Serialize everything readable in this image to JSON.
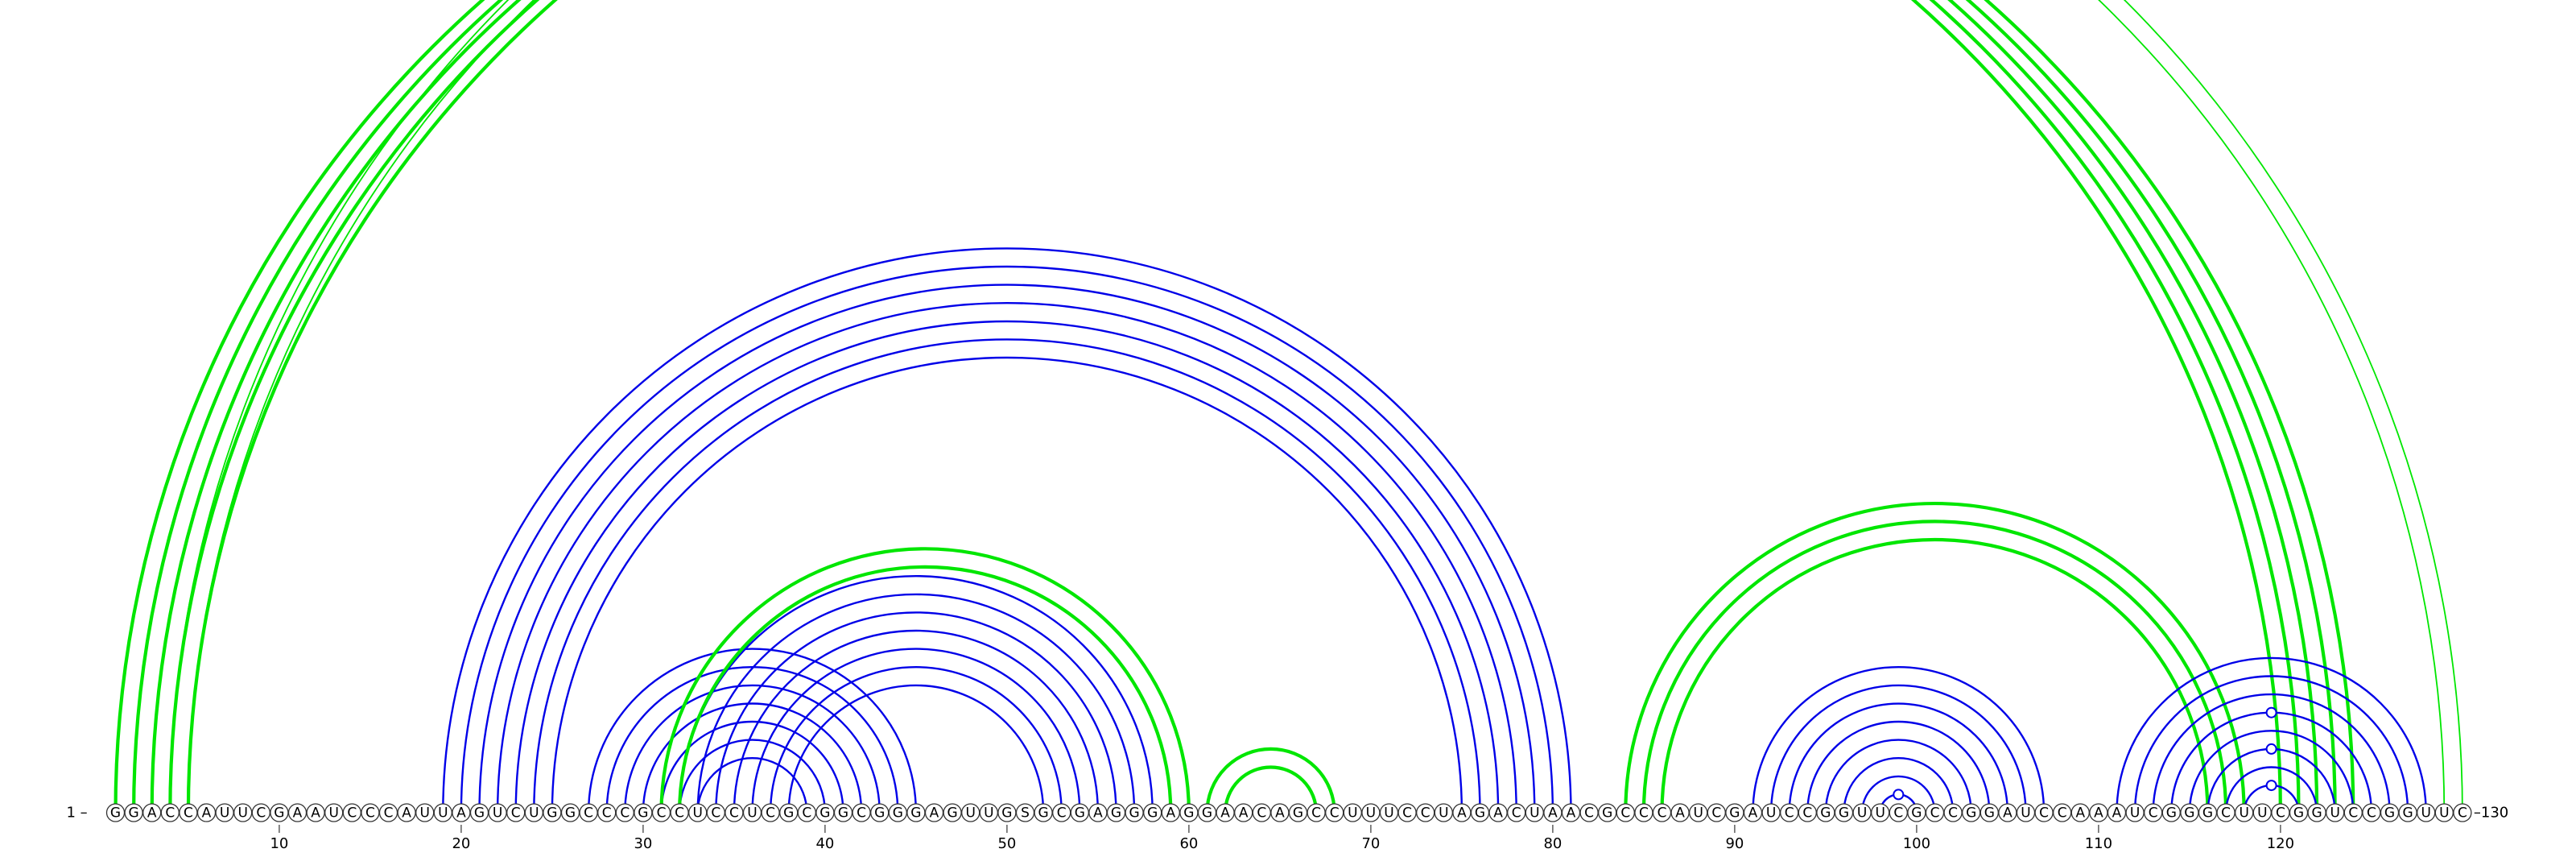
{
  "sequence": "GGACCAUUCGAAUCCCAUUAGUCUGGCCCGCCUCCUCGCGGCGGGAGUUGSGCGAGGGAGGAACAGCCUUUCCUAGACUAACGCCCAUCGAUCCGGUUCGCCGGAUCCAAAUCGGGCUUCGGUCCGGUUC",
  "length": 130,
  "start_label": "1 –",
  "end_label": "–130",
  "tick_labels": [
    "10",
    "20",
    "30",
    "40",
    "50",
    "60",
    "70",
    "80",
    "90",
    "100",
    "110",
    "120"
  ],
  "colors": {
    "primary_arcs": "#0000e8",
    "pseudoknot_arcs": "#00e600"
  },
  "arcs": [
    {
      "color": "pseudoknot",
      "weight": "bold",
      "pairs": [
        [
          1,
          120
        ],
        [
          2,
          121
        ],
        [
          3,
          122
        ],
        [
          4,
          123
        ],
        [
          5,
          124
        ]
      ]
    },
    {
      "color": "pseudoknot",
      "weight": "light",
      "pairs": [
        [
          4,
          130
        ],
        [
          5,
          129
        ]
      ]
    },
    {
      "color": "primary",
      "weight": "medium",
      "pairs": [
        [
          19,
          81
        ],
        [
          20,
          80
        ],
        [
          21,
          79
        ],
        [
          22,
          78
        ],
        [
          23,
          77
        ],
        [
          24,
          76
        ],
        [
          25,
          75
        ]
      ]
    },
    {
      "color": "primary",
      "weight": "medium",
      "pairs": [
        [
          27,
          45
        ],
        [
          28,
          44
        ],
        [
          29,
          43
        ],
        [
          30,
          42
        ],
        [
          31,
          41
        ],
        [
          32,
          40
        ],
        [
          33,
          39
        ]
      ]
    },
    {
      "color": "primary",
      "weight": "medium",
      "pairs": [
        [
          32,
          58
        ],
        [
          33,
          57
        ],
        [
          34,
          56
        ],
        [
          35,
          55
        ],
        [
          36,
          54
        ],
        [
          37,
          53
        ],
        [
          38,
          52
        ]
      ]
    },
    {
      "color": "pseudoknot",
      "weight": "bold",
      "pairs": [
        [
          31,
          60
        ],
        [
          32,
          59
        ]
      ]
    },
    {
      "color": "pseudoknot",
      "weight": "bold",
      "pairs": [
        [
          61,
          68
        ],
        [
          62,
          67
        ]
      ]
    },
    {
      "color": "pseudoknot",
      "weight": "bold",
      "pairs": [
        [
          84,
          118
        ],
        [
          85,
          117
        ],
        [
          86,
          116
        ]
      ]
    },
    {
      "color": "primary",
      "weight": "medium",
      "pairs": [
        [
          91,
          107
        ],
        [
          92,
          106
        ],
        [
          93,
          105
        ],
        [
          94,
          104
        ],
        [
          95,
          103
        ],
        [
          96,
          102
        ],
        [
          97,
          101
        ],
        [
          98,
          100
        ]
      ]
    },
    {
      "color": "primary",
      "weight": "medium",
      "pairs": [
        [
          111,
          128
        ],
        [
          112,
          127
        ],
        [
          113,
          126
        ],
        [
          114,
          125
        ],
        [
          115,
          124
        ],
        [
          116,
          123
        ],
        [
          117,
          122
        ],
        [
          118,
          121
        ]
      ]
    }
  ],
  "pk_markers": [
    {
      "color": "pseudoknot",
      "pair": [
        4,
        130
      ]
    },
    {
      "color": "primary",
      "pair": [
        98,
        100
      ]
    },
    {
      "color": "primary",
      "pair": [
        114,
        125
      ]
    },
    {
      "color": "primary",
      "pair": [
        116,
        123
      ]
    },
    {
      "color": "primary",
      "pair": [
        118,
        121
      ]
    }
  ]
}
